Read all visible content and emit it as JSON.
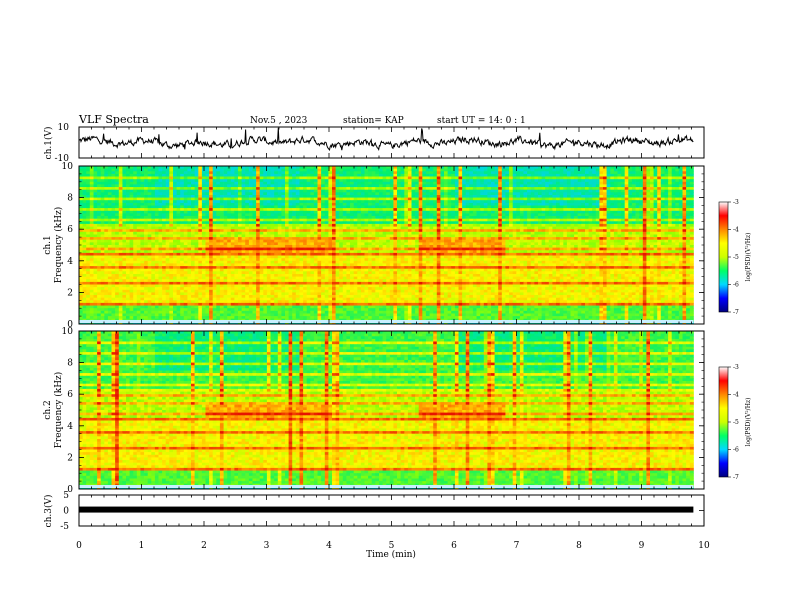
{
  "header": {
    "title": "VLF Spectra",
    "date": "Nov.5 , 2023",
    "station": "station= KAP",
    "start": "start UT = 14: 0 : 1"
  },
  "chart_data": [
    {
      "type": "line",
      "ylabel": "ch.1(V)",
      "ylim": [
        -10,
        10
      ],
      "yticks": [
        "10",
        "-10"
      ],
      "xlim": [
        0,
        10
      ],
      "color": "#000000",
      "baseline": 0
    },
    {
      "type": "heatmap",
      "ylabel": "ch.1\nFrequency (kHz)",
      "ylim": [
        0,
        10
      ],
      "yticks": [
        "0",
        "2",
        "4",
        "6",
        "8",
        "10"
      ],
      "xlim": [
        0,
        10
      ],
      "colorbar": {
        "label": "log(PSD)(V²/Hz)",
        "range": [
          -7,
          -3
        ],
        "ticks": [
          "-3",
          "-4",
          "-5",
          "-6",
          "-7"
        ],
        "colors": [
          "#00007f",
          "#0000ff",
          "#00d9ff",
          "#00ff66",
          "#ccff00",
          "#ffff00",
          "#ff8800",
          "#ff0000",
          "#ffffff"
        ]
      }
    },
    {
      "type": "heatmap",
      "ylabel": "ch.2\nFrequency (kHz)",
      "ylim": [
        0,
        10
      ],
      "yticks": [
        "0",
        "2",
        "4",
        "6",
        "8",
        "10"
      ],
      "xlim": [
        0,
        10
      ],
      "colorbar": {
        "label": "log(PSD)(V²/Hz)",
        "range": [
          -7,
          -3
        ],
        "ticks": [
          "-3",
          "-4",
          "-5",
          "-6",
          "-7"
        ],
        "colors": [
          "#00007f",
          "#0000ff",
          "#00d9ff",
          "#00ff66",
          "#ccff00",
          "#ffff00",
          "#ff8800",
          "#ff0000",
          "#ffffff"
        ]
      }
    },
    {
      "type": "line",
      "ylabel": "ch.3(V)",
      "ylim": [
        -5,
        5
      ],
      "yticks": [
        "5",
        "0",
        "-5"
      ],
      "xlim": [
        0,
        10
      ],
      "color": "#000000",
      "constant_value": 0
    }
  ],
  "xaxis": {
    "label": "Time (min)",
    "range": [
      0,
      10
    ],
    "ticks": [
      "0",
      "1",
      "2",
      "3",
      "4",
      "5",
      "6",
      "7",
      "8",
      "9",
      "10"
    ],
    "data_end": 9.83
  }
}
